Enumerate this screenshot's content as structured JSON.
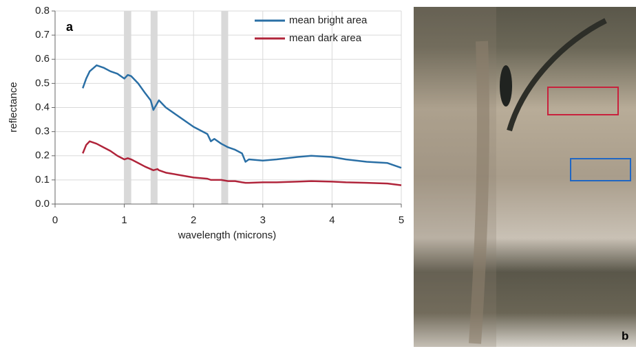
{
  "chart_data": {
    "type": "line",
    "panel_label": "a",
    "x_label": "wavelength (microns)",
    "y_label": "reflectance",
    "x": [
      0.4,
      0.45,
      0.5,
      0.6,
      0.7,
      0.8,
      0.9,
      1.0,
      1.05,
      1.1,
      1.2,
      1.3,
      1.38,
      1.42,
      1.48,
      1.5,
      1.6,
      1.8,
      2.0,
      2.2,
      2.25,
      2.3,
      2.4,
      2.5,
      2.6,
      2.7,
      2.75,
      2.8,
      3.0,
      3.2,
      3.5,
      3.7,
      4.0,
      4.2,
      4.5,
      4.8,
      5.0
    ],
    "series": [
      {
        "name": "mean bright area",
        "color": "#2a6fa5",
        "values": [
          0.48,
          0.52,
          0.55,
          0.575,
          0.565,
          0.55,
          0.54,
          0.52,
          0.535,
          0.53,
          0.5,
          0.46,
          0.43,
          0.39,
          0.42,
          0.43,
          0.4,
          0.36,
          0.32,
          0.29,
          0.26,
          0.27,
          0.25,
          0.235,
          0.225,
          0.21,
          0.175,
          0.185,
          0.18,
          0.185,
          0.195,
          0.2,
          0.195,
          0.185,
          0.175,
          0.17,
          0.15
        ]
      },
      {
        "name": "mean dark area",
        "color": "#b0243a",
        "values": [
          0.21,
          0.245,
          0.26,
          0.25,
          0.235,
          0.22,
          0.2,
          0.185,
          0.19,
          0.185,
          0.17,
          0.155,
          0.145,
          0.14,
          0.145,
          0.14,
          0.13,
          0.12,
          0.11,
          0.105,
          0.1,
          0.1,
          0.1,
          0.095,
          0.095,
          0.09,
          0.088,
          0.088,
          0.09,
          0.09,
          0.093,
          0.095,
          0.093,
          0.09,
          0.088,
          0.085,
          0.078
        ]
      }
    ],
    "shaded_regions": [
      [
        1.0,
        1.1
      ],
      [
        1.38,
        1.48
      ],
      [
        2.4,
        2.5
      ]
    ],
    "xlim": [
      0,
      5
    ],
    "xticks": [
      0,
      1,
      2,
      3,
      4,
      5
    ],
    "ylim": [
      0,
      0.8
    ],
    "yticks": [
      {
        "value": 0,
        "label": "0.0"
      },
      0.1,
      0.2,
      0.3,
      0.4,
      0.5,
      0.6,
      0.7,
      0.8
    ],
    "grid": true,
    "legend": "upper right"
  },
  "image_panel": {
    "label": "b"
  }
}
